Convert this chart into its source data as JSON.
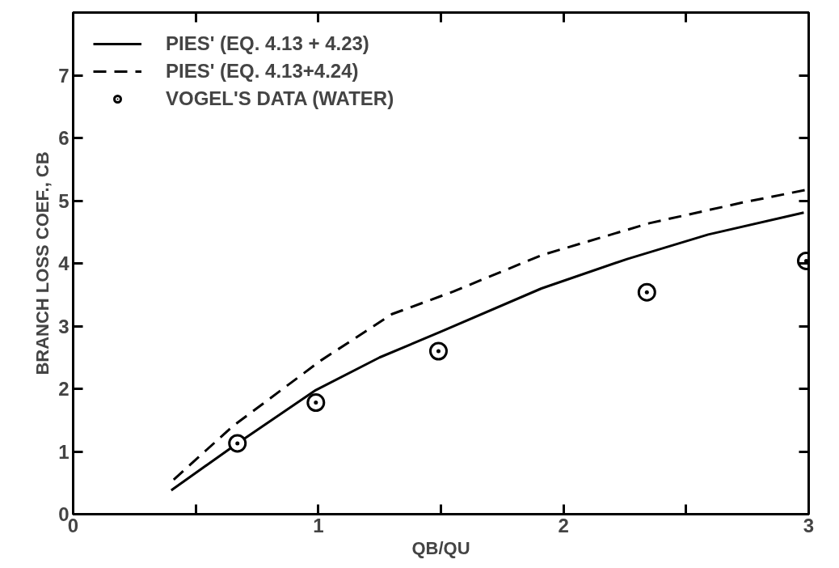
{
  "chart_data": {
    "type": "line",
    "xlabel": "QB/QU",
    "ylabel": "BRANCH LOSS COEF., CB",
    "xlim": [
      0,
      3
    ],
    "ylim": [
      0,
      8
    ],
    "xticks": [
      0,
      {
        "value": 0.5,
        "label": null
      },
      1,
      {
        "value": 1.5,
        "label": null
      },
      2,
      {
        "value": 2.5,
        "label": null
      },
      3
    ],
    "yticks": [
      0,
      1,
      2,
      3,
      4,
      5,
      6,
      7
    ],
    "grid": false,
    "legend": "top left",
    "series": [
      {
        "name": "PIES' (EQ. 4.13 + 4.23)",
        "color": "#000000",
        "line_style": "solid",
        "x": [
          0.4,
          0.67,
          0.99,
          1.25,
          1.5,
          1.91,
          2.26,
          2.59,
          2.98
        ],
        "values": [
          0.38,
          1.13,
          1.98,
          2.5,
          2.91,
          3.6,
          4.07,
          4.46,
          4.81
        ]
      },
      {
        "name": "PIES' (EQ. 4.13+4.24)",
        "color": "#000000",
        "line_style": "dashed",
        "x": [
          0.41,
          0.65,
          1.01,
          1.3,
          1.55,
          1.91,
          2.35,
          2.73,
          3.0
        ],
        "values": [
          0.55,
          1.4,
          2.45,
          3.19,
          3.55,
          4.13,
          4.64,
          4.97,
          5.18
        ]
      },
      {
        "name": "VOGEL'S DATA (WATER)",
        "type": "scatter",
        "marker": "circle",
        "color": "#000000",
        "x": [
          0.67,
          0.99,
          1.49,
          2.34,
          2.99
        ],
        "values": [
          1.13,
          1.78,
          2.6,
          3.54,
          4.04
        ]
      }
    ]
  }
}
